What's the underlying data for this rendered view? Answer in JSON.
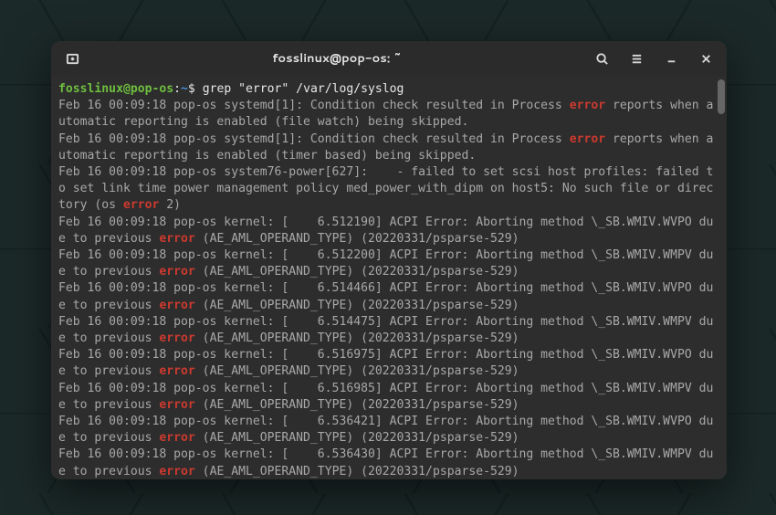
{
  "window": {
    "title": "fosslinux@pop-os: ~"
  },
  "prompt": {
    "user_host": "fosslinux@pop-os",
    "path": "~",
    "command": "grep \"error\" /var/log/syslog"
  },
  "highlight_term": "error",
  "colors": {
    "titlebar_bg": "#2b2b2b",
    "terminal_bg": "#2d2d2d",
    "text": "#a8a8a8",
    "prompt_user": "#6fbf3f",
    "prompt_path": "#4a8fd6",
    "highlight": "#cc3a2f"
  },
  "lines": [
    "Feb 16 00:09:18 pop-os systemd[1]: Condition check resulted in Process error reports when automatic reporting is enabled (file watch) being skipped.",
    "Feb 16 00:09:18 pop-os systemd[1]: Condition check resulted in Process error reports when automatic reporting is enabled (timer based) being skipped.",
    "Feb 16 00:09:18 pop-os system76-power[627]:    - failed to set scsi host profiles: failed to set link time power management policy med_power_with_dipm on host5: No such file or directory (os error 2)",
    "Feb 16 00:09:18 pop-os kernel: [    6.512190] ACPI Error: Aborting method \\_SB.WMIV.WVPO due to previous error (AE_AML_OPERAND_TYPE) (20220331/psparse-529)",
    "Feb 16 00:09:18 pop-os kernel: [    6.512200] ACPI Error: Aborting method \\_SB.WMIV.WMPV due to previous error (AE_AML_OPERAND_TYPE) (20220331/psparse-529)",
    "Feb 16 00:09:18 pop-os kernel: [    6.514466] ACPI Error: Aborting method \\_SB.WMIV.WVPO due to previous error (AE_AML_OPERAND_TYPE) (20220331/psparse-529)",
    "Feb 16 00:09:18 pop-os kernel: [    6.514475] ACPI Error: Aborting method \\_SB.WMIV.WMPV due to previous error (AE_AML_OPERAND_TYPE) (20220331/psparse-529)",
    "Feb 16 00:09:18 pop-os kernel: [    6.516975] ACPI Error: Aborting method \\_SB.WMIV.WVPO due to previous error (AE_AML_OPERAND_TYPE) (20220331/psparse-529)",
    "Feb 16 00:09:18 pop-os kernel: [    6.516985] ACPI Error: Aborting method \\_SB.WMIV.WMPV due to previous error (AE_AML_OPERAND_TYPE) (20220331/psparse-529)",
    "Feb 16 00:09:18 pop-os kernel: [    6.536421] ACPI Error: Aborting method \\_SB.WMIV.WVPO due to previous error (AE_AML_OPERAND_TYPE) (20220331/psparse-529)",
    "Feb 16 00:09:18 pop-os kernel: [    6.536430] ACPI Error: Aborting method \\_SB.WMIV.WMPV due to previous error (AE_AML_OPERAND_TYPE) (20220331/psparse-529)"
  ]
}
